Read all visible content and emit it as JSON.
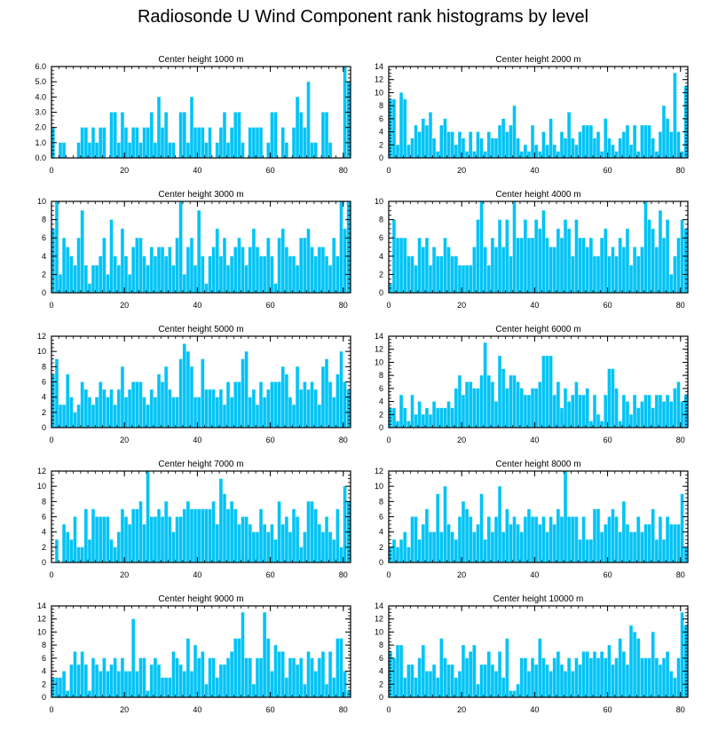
{
  "title": "Radiosonde U Wind Component rank histograms by level",
  "colors": {
    "bar": "#00c3f5",
    "bar_edge": "#7fe0fb",
    "axis": "#000000"
  },
  "chart_data": [
    {
      "type": "bar",
      "title": "Center height 1000 m",
      "xlim": [
        0,
        82
      ],
      "ylim": [
        0,
        6
      ],
      "xticks": [
        0,
        20,
        40,
        60,
        80
      ],
      "xtick_labels": [
        "0",
        "20",
        "40",
        "60",
        "80"
      ],
      "yticks": [
        0,
        1,
        2,
        3,
        4,
        5,
        6
      ],
      "ytick_labels": [
        "0.0",
        "1.0",
        "2.0",
        "3.0",
        "4.0",
        "5.0",
        "6.0"
      ],
      "x_start": 0,
      "values": [
        2,
        0,
        1,
        1,
        0,
        0,
        0,
        1,
        2,
        2,
        1,
        2,
        1,
        2,
        2,
        0,
        3,
        3,
        1,
        3,
        2,
        1,
        2,
        2,
        1,
        2,
        2,
        3,
        1,
        4,
        2,
        3,
        1,
        1,
        0,
        3,
        3,
        1,
        4,
        2,
        2,
        2,
        1,
        2,
        0,
        1,
        2,
        3,
        1,
        2,
        3,
        3,
        1,
        0,
        2,
        2,
        2,
        2,
        0,
        1,
        3,
        3,
        0,
        2,
        1,
        0,
        2,
        4,
        3,
        2,
        5,
        1,
        1,
        0,
        3,
        3,
        1,
        0,
        0,
        0,
        6,
        5
      ]
    },
    {
      "type": "bar",
      "title": "Center height 2000 m",
      "xlim": [
        0,
        82
      ],
      "ylim": [
        0,
        14
      ],
      "xticks": [
        0,
        20,
        40,
        60,
        80
      ],
      "xtick_labels": [
        "0",
        "20",
        "40",
        "60",
        "80"
      ],
      "yticks": [
        0,
        2,
        4,
        6,
        8,
        10,
        12,
        14
      ],
      "ytick_labels": [
        "0",
        "2",
        "4",
        "6",
        "8",
        "10",
        "12",
        "14"
      ],
      "x_start": 0,
      "values": [
        9,
        9,
        2,
        10,
        9,
        2,
        3,
        5,
        4,
        6,
        5,
        7,
        3,
        1,
        5,
        6,
        4,
        4,
        2,
        4,
        3,
        1,
        4,
        1,
        4,
        3,
        1,
        4,
        3,
        3,
        5,
        6,
        4,
        5,
        8,
        3,
        1,
        2,
        1,
        5,
        2,
        1,
        4,
        2,
        6,
        2,
        1,
        4,
        3,
        7,
        3,
        2,
        4,
        5,
        5,
        5,
        3,
        4,
        1,
        6,
        3,
        2,
        1,
        3,
        4,
        5,
        2,
        5,
        1,
        5,
        5,
        5,
        3,
        1,
        4,
        8,
        6,
        4,
        13,
        4,
        1,
        11
      ]
    },
    {
      "type": "bar",
      "title": "Center height 3000 m",
      "xlim": [
        0,
        82
      ],
      "ylim": [
        0,
        10
      ],
      "xticks": [
        0,
        20,
        40,
        60,
        80
      ],
      "xtick_labels": [
        "0",
        "20",
        "40",
        "60",
        "80"
      ],
      "yticks": [
        0,
        2,
        4,
        6,
        8,
        10
      ],
      "ytick_labels": [
        "0",
        "2",
        "4",
        "6",
        "8",
        "10"
      ],
      "x_start": 0,
      "values": [
        7,
        10,
        2,
        6,
        5,
        4,
        3,
        6,
        9,
        3,
        1,
        3,
        3,
        4,
        6,
        2,
        8,
        4,
        3,
        7,
        4,
        2,
        5,
        6,
        6,
        4,
        3,
        5,
        4,
        5,
        5,
        4,
        5,
        3,
        6,
        10,
        2,
        5,
        6,
        3,
        9,
        4,
        1,
        4,
        5,
        7,
        4,
        6,
        3,
        4,
        5,
        6,
        5,
        3,
        5,
        7,
        5,
        4,
        4,
        6,
        4,
        1,
        6,
        7,
        5,
        4,
        4,
        3,
        6,
        6,
        7,
        5,
        4,
        5,
        5,
        4,
        3,
        6,
        4,
        10,
        7,
        10
      ]
    },
    {
      "type": "bar",
      "title": "Center height 4000 m",
      "xlim": [
        0,
        82
      ],
      "ylim": [
        0,
        10
      ],
      "xticks": [
        0,
        20,
        40,
        60,
        80
      ],
      "xtick_labels": [
        "0",
        "20",
        "40",
        "60",
        "80"
      ],
      "yticks": [
        0,
        2,
        4,
        6,
        8,
        10
      ],
      "ytick_labels": [
        "0",
        "2",
        "4",
        "6",
        "8",
        "10"
      ],
      "x_start": 0,
      "values": [
        1,
        8,
        6,
        6,
        6,
        4,
        4,
        3,
        6,
        5,
        6,
        3,
        5,
        4,
        4,
        6,
        5,
        4,
        4,
        3,
        3,
        3,
        3,
        5,
        8,
        10,
        5,
        3,
        6,
        5,
        8,
        5,
        8,
        4,
        10,
        6,
        6,
        8,
        6,
        6,
        8,
        7,
        9,
        6,
        5,
        5,
        7,
        6,
        8,
        7,
        4,
        8,
        6,
        6,
        5,
        6,
        4,
        4,
        6,
        7,
        4,
        5,
        4,
        6,
        5,
        7,
        3,
        5,
        4,
        5,
        10,
        8,
        7,
        5,
        9,
        6,
        8,
        2,
        4,
        6,
        8,
        7
      ]
    },
    {
      "type": "bar",
      "title": "Center height 5000 m",
      "xlim": [
        0,
        82
      ],
      "ylim": [
        0,
        12
      ],
      "xticks": [
        0,
        20,
        40,
        60,
        80
      ],
      "xtick_labels": [
        "0",
        "20",
        "40",
        "60",
        "80"
      ],
      "yticks": [
        0,
        2,
        4,
        6,
        8,
        10,
        12
      ],
      "ytick_labels": [
        "0",
        "2",
        "4",
        "6",
        "8",
        "10",
        "12"
      ],
      "x_start": 0,
      "values": [
        7,
        9,
        3,
        3,
        7,
        4,
        2,
        3,
        6,
        5,
        4,
        3,
        4,
        6,
        5,
        4,
        5,
        3,
        5,
        8,
        4,
        5,
        6,
        6,
        6,
        4,
        3,
        5,
        4,
        7,
        6,
        8,
        5,
        4,
        4,
        9,
        11,
        10,
        8,
        4,
        4,
        9,
        5,
        5,
        5,
        4,
        5,
        3,
        6,
        4,
        6,
        6,
        9,
        10,
        4,
        5,
        3,
        6,
        4,
        5,
        6,
        6,
        6,
        8,
        7,
        4,
        3,
        8,
        5,
        6,
        5,
        6,
        5,
        3,
        8,
        9,
        6,
        4,
        7,
        10,
        6,
        5
      ]
    },
    {
      "type": "bar",
      "title": "Center height 6000 m",
      "xlim": [
        0,
        82
      ],
      "ylim": [
        0,
        14
      ],
      "xticks": [
        0,
        20,
        40,
        60,
        80
      ],
      "xtick_labels": [
        "0",
        "20",
        "40",
        "60",
        "80"
      ],
      "yticks": [
        0,
        2,
        4,
        6,
        8,
        10,
        12,
        14
      ],
      "ytick_labels": [
        "0",
        "2",
        "4",
        "6",
        "8",
        "10",
        "12",
        "14"
      ],
      "x_start": 0,
      "values": [
        3,
        3,
        1,
        5,
        3,
        1,
        5,
        2,
        4,
        2,
        3,
        2,
        4,
        3,
        3,
        3,
        4,
        3,
        6,
        8,
        5,
        7,
        7,
        6,
        6,
        8,
        13,
        8,
        7,
        4,
        11,
        9,
        6,
        8,
        8,
        7,
        6,
        5,
        5,
        6,
        6,
        7,
        11,
        11,
        11,
        5,
        7,
        3,
        6,
        4,
        5,
        7,
        5,
        5,
        6,
        1,
        5,
        2,
        1,
        5,
        9,
        9,
        6,
        1,
        5,
        4,
        2,
        5,
        3,
        4,
        5,
        5,
        3,
        5,
        5,
        4,
        5,
        4,
        6,
        7,
        4,
        5
      ]
    },
    {
      "type": "bar",
      "title": "Center height 7000 m",
      "xlim": [
        0,
        82
      ],
      "ylim": [
        0,
        12
      ],
      "xticks": [
        0,
        20,
        40,
        60,
        80
      ],
      "xtick_labels": [
        "0",
        "20",
        "40",
        "60",
        "80"
      ],
      "yticks": [
        0,
        2,
        4,
        6,
        8,
        10,
        12
      ],
      "ytick_labels": [
        "0",
        "2",
        "4",
        "6",
        "8",
        "10",
        "12"
      ],
      "x_start": 0,
      "values": [
        0,
        3,
        0,
        5,
        4,
        3,
        6,
        2,
        2,
        7,
        3,
        7,
        6,
        6,
        6,
        6,
        3,
        2,
        4,
        7,
        6,
        5,
        7,
        7,
        8,
        5,
        12,
        6,
        6,
        7,
        6,
        8,
        6,
        4,
        6,
        6,
        7,
        8,
        7,
        7,
        7,
        7,
        7,
        7,
        8,
        5,
        11,
        9,
        7,
        8,
        7,
        5,
        6,
        6,
        5,
        4,
        4,
        7,
        5,
        4,
        5,
        3,
        8,
        5,
        6,
        4,
        7,
        6,
        2,
        4,
        8,
        8,
        7,
        5,
        4,
        6,
        4,
        3,
        7,
        2,
        10,
        8
      ]
    },
    {
      "type": "bar",
      "title": "Center height 8000 m",
      "xlim": [
        0,
        82
      ],
      "ylim": [
        0,
        12
      ],
      "xticks": [
        0,
        20,
        40,
        60,
        80
      ],
      "xtick_labels": [
        "0",
        "20",
        "40",
        "60",
        "80"
      ],
      "yticks": [
        0,
        2,
        4,
        6,
        8,
        10,
        12
      ],
      "ytick_labels": [
        "0",
        "2",
        "4",
        "6",
        "8",
        "10",
        "12"
      ],
      "x_start": 0,
      "values": [
        2,
        3,
        2,
        3,
        4,
        2,
        6,
        6,
        3,
        5,
        7,
        4,
        4,
        9,
        4,
        10,
        5,
        4,
        3,
        6,
        8,
        7,
        6,
        4,
        5,
        9,
        3,
        6,
        4,
        6,
        10,
        4,
        7,
        5,
        6,
        5,
        4,
        6,
        7,
        6,
        6,
        5,
        6,
        4,
        6,
        5,
        7,
        6,
        12,
        6,
        6,
        6,
        3,
        6,
        3,
        3,
        7,
        7,
        4,
        5,
        6,
        7,
        6,
        4,
        8,
        5,
        4,
        4,
        6,
        4,
        5,
        5,
        7,
        3,
        6,
        3,
        6,
        5,
        5,
        5,
        9,
        2
      ]
    },
    {
      "type": "bar",
      "title": "Center height 9000 m",
      "xlim": [
        0,
        82
      ],
      "ylim": [
        0,
        14
      ],
      "xticks": [
        0,
        20,
        40,
        60,
        80
      ],
      "xtick_labels": [
        "0",
        "20",
        "40",
        "60",
        "80"
      ],
      "yticks": [
        0,
        2,
        4,
        6,
        8,
        10,
        12,
        14
      ],
      "ytick_labels": [
        "0",
        "2",
        "4",
        "6",
        "8",
        "10",
        "12",
        "14"
      ],
      "x_start": 0,
      "values": [
        3,
        3,
        3,
        4,
        1,
        5,
        7,
        5,
        7,
        5,
        1,
        6,
        5,
        4,
        6,
        4,
        5,
        6,
        4,
        6,
        4,
        4,
        12,
        4,
        6,
        6,
        1,
        5,
        6,
        5,
        3,
        3,
        3,
        7,
        6,
        5,
        4,
        9,
        4,
        8,
        6,
        7,
        2,
        6,
        6,
        3,
        5,
        5,
        6,
        7,
        9,
        9,
        13,
        6,
        6,
        2,
        6,
        6,
        13,
        9,
        4,
        8,
        7,
        7,
        3,
        6,
        6,
        5,
        6,
        2,
        7,
        6,
        4,
        6,
        7,
        2,
        7,
        3,
        9,
        9,
        4,
        1
      ]
    },
    {
      "type": "bar",
      "title": "Center height 10000 m",
      "xlim": [
        0,
        82
      ],
      "ylim": [
        0,
        14
      ],
      "xticks": [
        0,
        20,
        40,
        60,
        80
      ],
      "xtick_labels": [
        "0",
        "20",
        "40",
        "60",
        "80"
      ],
      "yticks": [
        0,
        2,
        4,
        6,
        8,
        10,
        12,
        14
      ],
      "ytick_labels": [
        "0",
        "2",
        "4",
        "6",
        "8",
        "10",
        "12",
        "14"
      ],
      "x_start": 0,
      "values": [
        7,
        6,
        8,
        8,
        3,
        5,
        5,
        3,
        6,
        8,
        4,
        4,
        5,
        3,
        9,
        6,
        5,
        5,
        3,
        4,
        8,
        6,
        7,
        8,
        2,
        5,
        5,
        7,
        5,
        4,
        7,
        3,
        9,
        1,
        1,
        2,
        6,
        6,
        4,
        6,
        5,
        9,
        6,
        5,
        4,
        6,
        7,
        5,
        4,
        6,
        4,
        6,
        5,
        7,
        7,
        6,
        7,
        6,
        7,
        6,
        8,
        5,
        6,
        9,
        7,
        5,
        11,
        10,
        9,
        6,
        6,
        6,
        10,
        6,
        5,
        6,
        7,
        4,
        3,
        6,
        13,
        11
      ]
    }
  ]
}
